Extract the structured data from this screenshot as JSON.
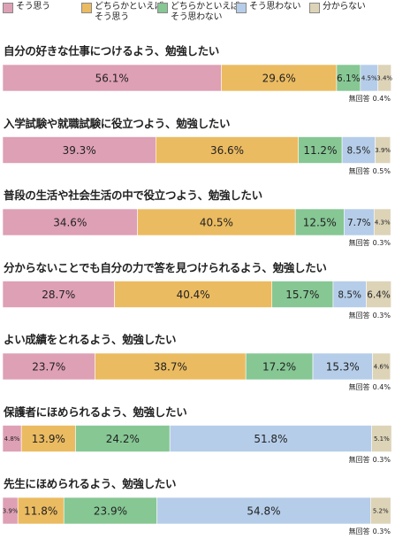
{
  "chart_data": {
    "type": "bar",
    "orientation": "horizontal-stacked-100",
    "legend_position": "top",
    "grid": false,
    "series": [
      {
        "name": "そう思う",
        "color": "#dea0b5"
      },
      {
        "name": "どちらかといえば\nそう思う",
        "color": "#ebbb61"
      },
      {
        "name": "どちらかといえば\nそう思わない",
        "color": "#86c794"
      },
      {
        "name": "そう思わない",
        "color": "#b5cde9"
      },
      {
        "name": "分からない",
        "color": "#ddd3b7"
      }
    ],
    "na_label_prefix": "無回答",
    "items": [
      {
        "title": "自分の好きな仕事につけるよう、勉強したい",
        "values": [
          56.1,
          29.6,
          6.1,
          4.5,
          3.4
        ],
        "labels": [
          "56.1%",
          "29.6%",
          "6.1%",
          "4.5%",
          "3.4%"
        ],
        "na": "0.4%"
      },
      {
        "title": "入学試験や就職試験に役立つよう、勉強したい",
        "values": [
          39.3,
          36.6,
          11.2,
          8.5,
          3.9
        ],
        "labels": [
          "39.3%",
          "36.6%",
          "11.2%",
          "8.5%",
          "3.9%"
        ],
        "na": "0.5%"
      },
      {
        "title": "普段の生活や社会生活の中で役立つよう、勉強したい",
        "values": [
          34.6,
          40.5,
          12.5,
          7.7,
          4.3
        ],
        "labels": [
          "34.6%",
          "40.5%",
          "12.5%",
          "7.7%",
          "4.3%"
        ],
        "na": "0.3%"
      },
      {
        "title": "分からないことでも自分の力で答を見つけられるよう、勉強したい",
        "values": [
          28.7,
          40.4,
          15.7,
          8.5,
          6.4
        ],
        "labels": [
          "28.7%",
          "40.4%",
          "15.7%",
          "8.5%",
          "6.4%"
        ],
        "na": "0.3%"
      },
      {
        "title": "よい成績をとれるよう、勉強したい",
        "values": [
          23.7,
          38.7,
          17.2,
          15.3,
          4.6
        ],
        "labels": [
          "23.7%",
          "38.7%",
          "17.2%",
          "15.3%",
          "4.6%"
        ],
        "na": "0.4%"
      },
      {
        "title": "保護者にほめられるよう、勉強したい",
        "values": [
          4.8,
          13.9,
          24.2,
          51.8,
          5.1
        ],
        "labels": [
          "4.8%",
          "13.9%",
          "24.2%",
          "51.8%",
          "5.1%"
        ],
        "na": "0.3%"
      },
      {
        "title": "先生にほめられるよう、勉強したい",
        "values": [
          3.9,
          11.8,
          23.9,
          54.8,
          5.2
        ],
        "labels": [
          "3.9%",
          "11.8%",
          "23.9%",
          "54.8%",
          "5.2%"
        ],
        "na": "0.3%"
      }
    ]
  }
}
